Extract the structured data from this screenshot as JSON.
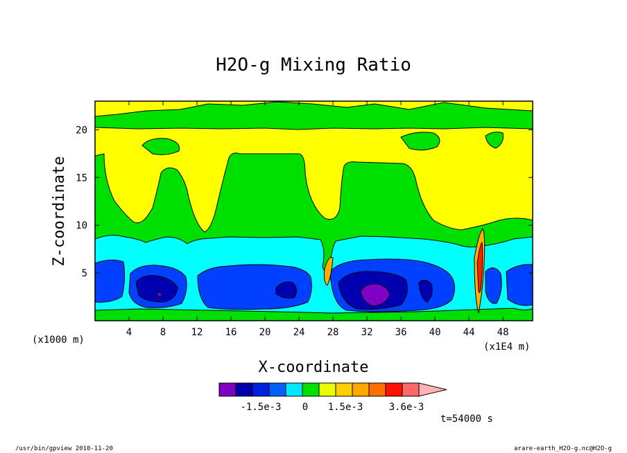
{
  "chart_data": {
    "type": "heatmap",
    "title": "H2O-g Mixing Ratio",
    "xlabel": "X-coordinate",
    "ylabel": "Z-coordinate",
    "x_unit_left": "(x1000 m)",
    "x_unit_right": "(x1E4 m)",
    "xlim": [
      0,
      51.5
    ],
    "ylim": [
      0,
      23
    ],
    "x_ticks": [
      "4",
      "8",
      "12",
      "16",
      "20",
      "24",
      "28",
      "32",
      "36",
      "40",
      "44",
      "48"
    ],
    "y_ticks": [
      "5",
      "10",
      "15",
      "20"
    ],
    "colorbar": {
      "labels": [
        "-1.5e-3",
        "0",
        "1.5e-3",
        "3.6e-3"
      ],
      "colors": [
        "#7f00c0",
        "#0000a8",
        "#0020e0",
        "#0060ff",
        "#00e8ff",
        "#00e000",
        "#e8ff00",
        "#ffd000",
        "#ffa800",
        "#ff7000",
        "#ff1000",
        "#ff6868",
        "#ffb4b4"
      ]
    },
    "time_label": "t=54000 s",
    "footer_left": "/usr/bin/gpview   2010-11-20",
    "footer_right": "arare-earth_H2O-g.nc@H2O-g",
    "field_colors": {
      "yellow": "#ffff00",
      "green": "#00e000",
      "cyan": "#00ffff",
      "blue": "#0040ff",
      "navy": "#0000b0",
      "purple": "#8000c8",
      "orange": "#ffb000",
      "red": "#ff2000"
    }
  }
}
